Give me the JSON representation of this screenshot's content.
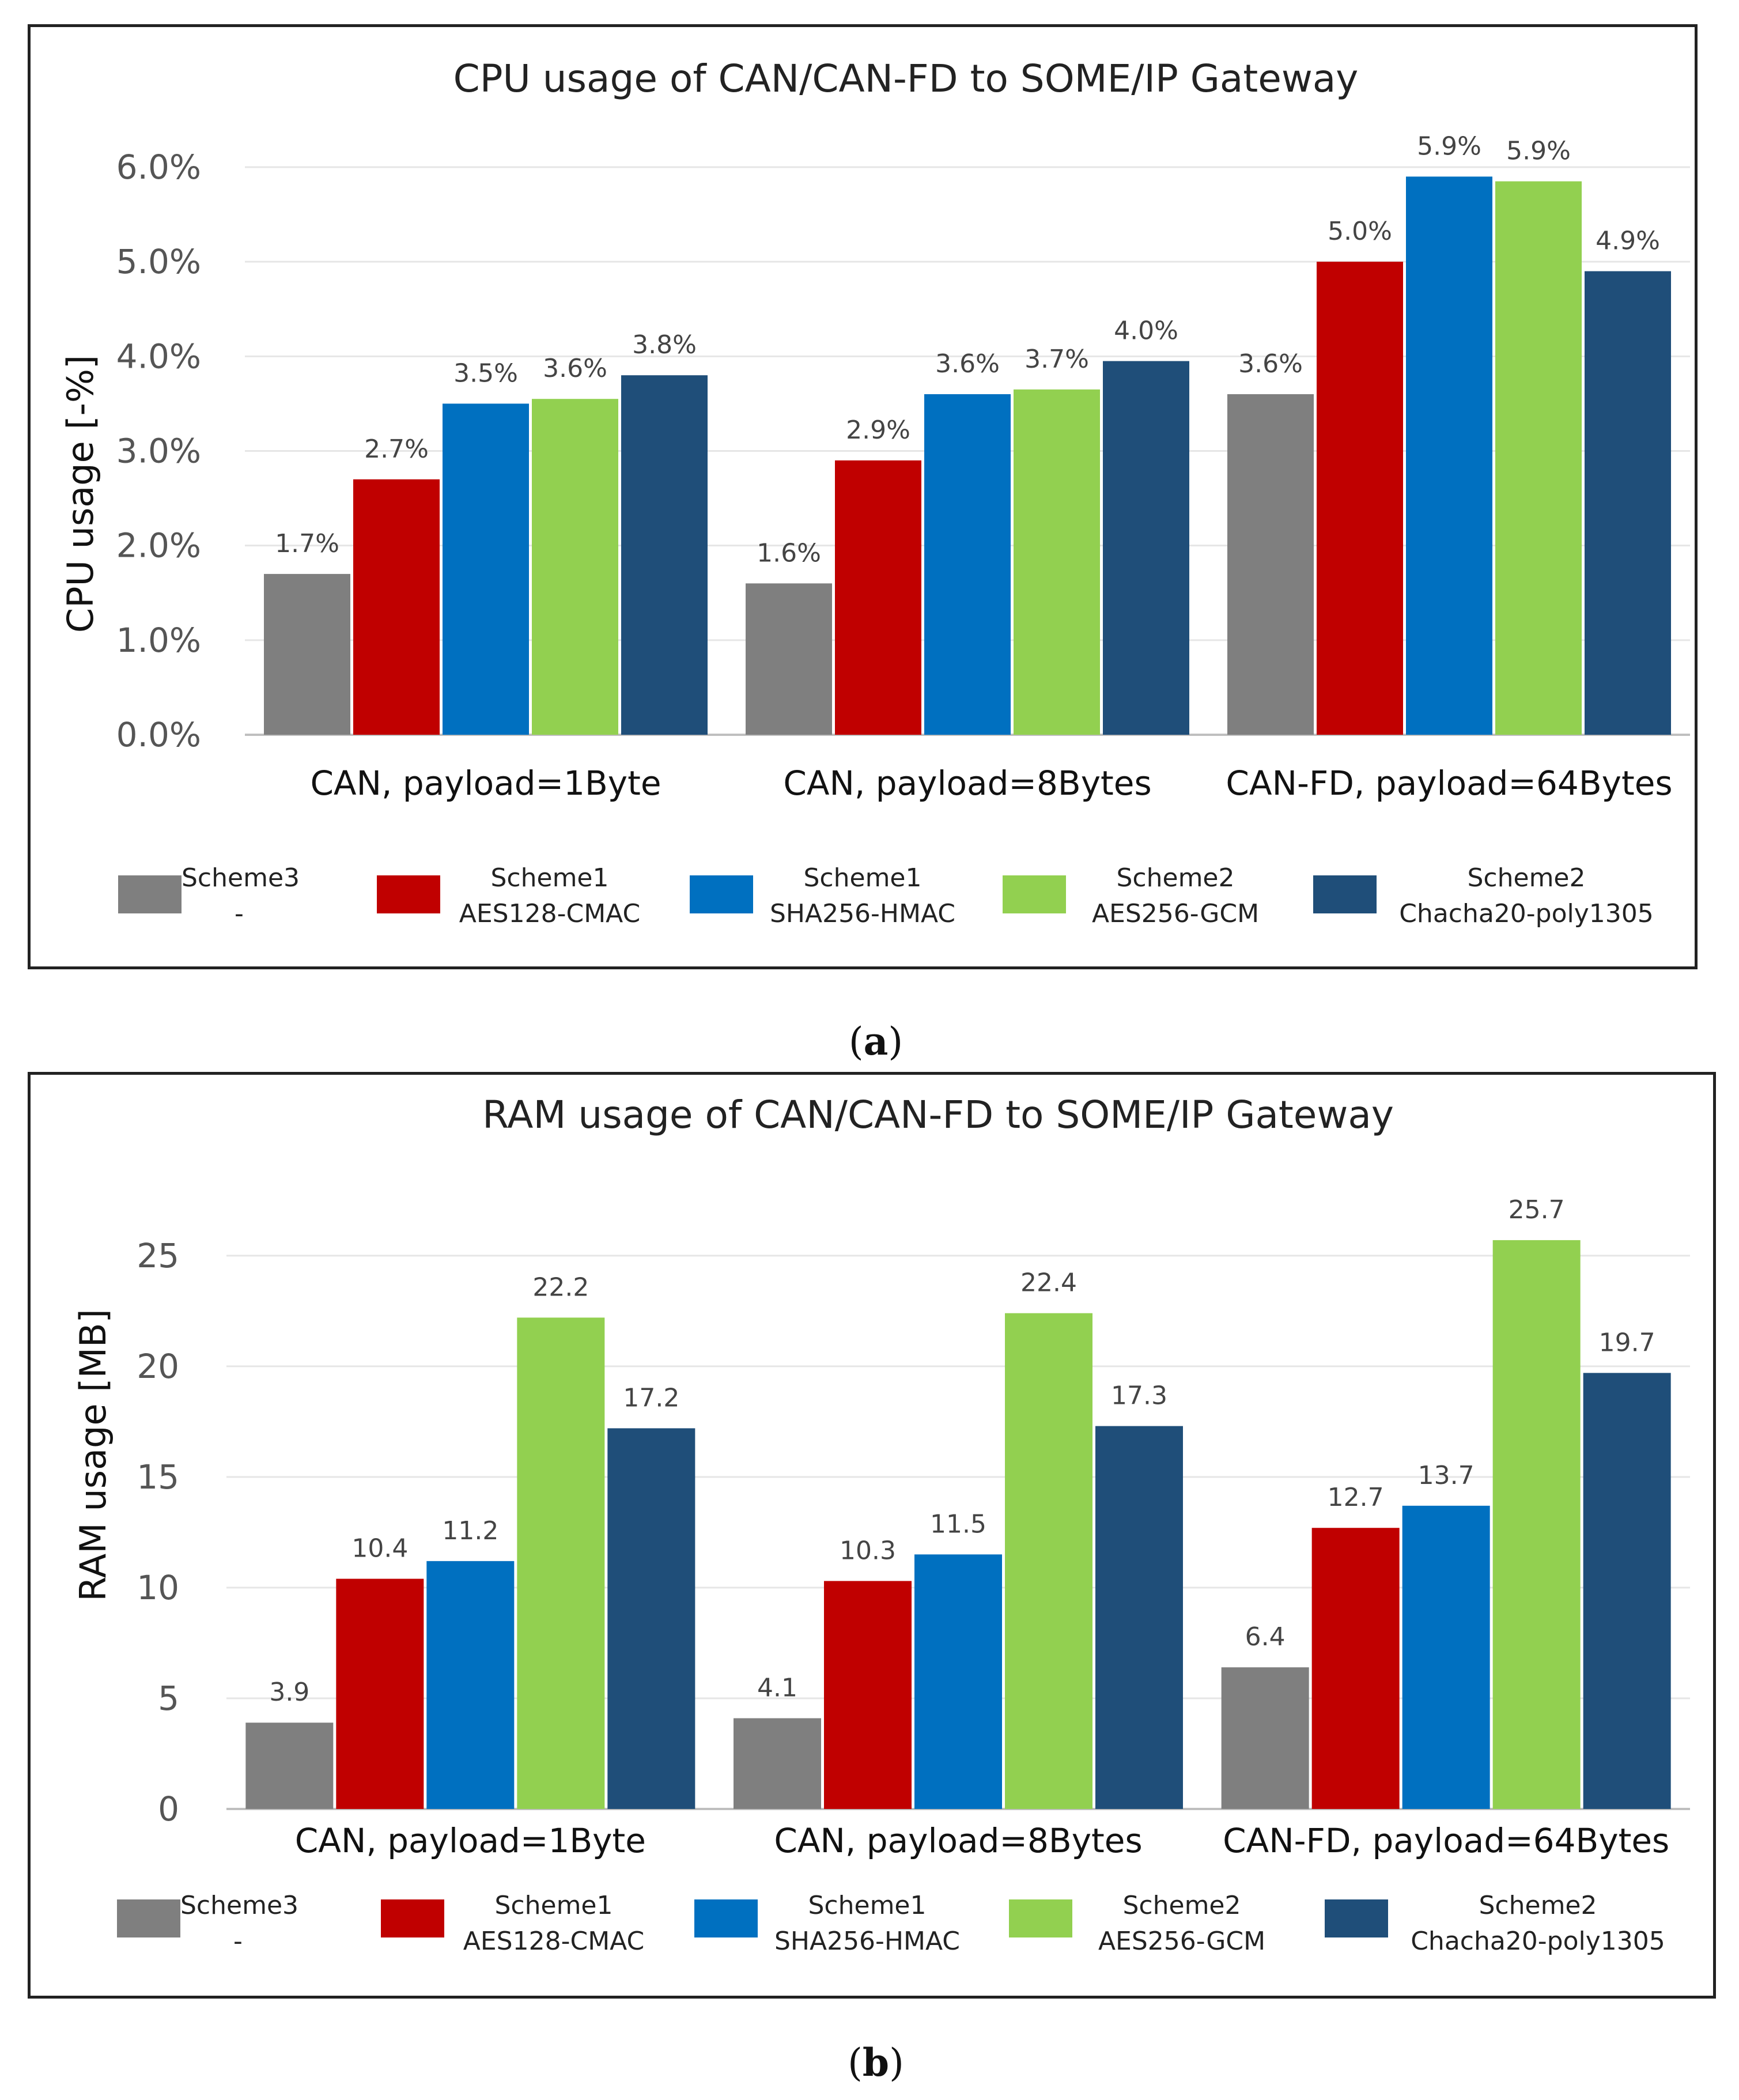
{
  "captions": {
    "a": "a",
    "b": "b"
  },
  "legend": [
    {
      "line1": "Scheme3",
      "line2": "-",
      "color": "#7f7f7f"
    },
    {
      "line1": "Scheme1",
      "line2": "AES128-CMAC",
      "color": "#c00000"
    },
    {
      "line1": "Scheme1",
      "line2": "SHA256-HMAC",
      "color": "#0070c0"
    },
    {
      "line1": "Scheme2",
      "line2": "AES256-GCM",
      "color": "#92d050"
    },
    {
      "line1": "Scheme2",
      "line2": "Chacha20-poly1305",
      "color": "#1f4e79"
    }
  ],
  "chart_data": [
    {
      "type": "bar",
      "title": "CPU usage  of CAN/CAN-FD to SOME/IP Gateway",
      "ylabel": "CPU usage [-%]",
      "xlabel": "",
      "categories": [
        "CAN, payload=1Byte",
        "CAN, payload=8Bytes",
        "CAN-FD, payload=64Bytes"
      ],
      "ylim": [
        0,
        6
      ],
      "yticks": [
        "0.0%",
        "1.0%",
        "2.0%",
        "3.0%",
        "4.0%",
        "5.0%",
        "6.0%"
      ],
      "series": [
        {
          "name": "Scheme3 -",
          "values": [
            1.7,
            1.6,
            3.6
          ],
          "labels": [
            "1.7%",
            "1.6%",
            "3.6%"
          ]
        },
        {
          "name": "Scheme1 AES128-CMAC",
          "values": [
            2.7,
            2.9,
            5.0
          ],
          "labels": [
            "2.7%",
            "2.9%",
            "5.0%"
          ]
        },
        {
          "name": "Scheme1 SHA256-HMAC",
          "values": [
            3.5,
            3.6,
            5.9
          ],
          "labels": [
            "3.5%",
            "3.6%",
            "5.9%"
          ]
        },
        {
          "name": "Scheme2 AES256-GCM",
          "values": [
            3.55,
            3.65,
            5.85
          ],
          "labels": [
            "3.6%",
            "3.7%",
            "5.9%"
          ]
        },
        {
          "name": "Scheme2 Chacha20-poly1305",
          "values": [
            3.8,
            3.95,
            4.9
          ],
          "labels": [
            "3.8%",
            "4.0%",
            "4.9%"
          ]
        }
      ]
    },
    {
      "type": "bar",
      "title": "RAM usage  of CAN/CAN-FD to SOME/IP Gateway",
      "ylabel": "RAM usage [MB]",
      "xlabel": "",
      "categories": [
        "CAN, payload=1Byte",
        "CAN, payload=8Bytes",
        "CAN-FD, payload=64Bytes"
      ],
      "ylim": [
        0,
        27
      ],
      "yticks": [
        "0",
        "5",
        "10",
        "15",
        "20",
        "25"
      ],
      "series": [
        {
          "name": "Scheme3 -",
          "values": [
            3.9,
            4.1,
            6.4
          ],
          "labels": [
            "3.9",
            "4.1",
            "6.4"
          ]
        },
        {
          "name": "Scheme1 AES128-CMAC",
          "values": [
            10.4,
            10.3,
            12.7
          ],
          "labels": [
            "10.4",
            "10.3",
            "12.7"
          ]
        },
        {
          "name": "Scheme1 SHA256-HMAC",
          "values": [
            11.2,
            11.5,
            13.7
          ],
          "labels": [
            "11.2",
            "11.5",
            "13.7"
          ]
        },
        {
          "name": "Scheme2 AES256-GCM",
          "values": [
            22.2,
            22.4,
            25.7
          ],
          "labels": [
            "22.2",
            "22.4",
            "25.7"
          ]
        },
        {
          "name": "Scheme2 Chacha20-poly1305",
          "values": [
            17.2,
            17.3,
            19.7
          ],
          "labels": [
            "17.2",
            "17.3",
            "19.7"
          ]
        }
      ]
    }
  ]
}
